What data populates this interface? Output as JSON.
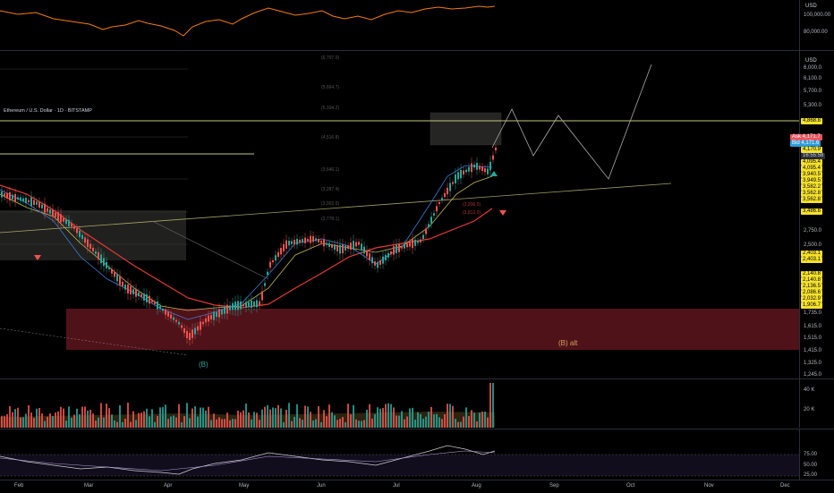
{
  "compare": {
    "currency": "USD",
    "ticks": [
      "100,000.00",
      "80,000.00"
    ]
  },
  "main": {
    "symbol": "Ethereum / U.S. Dollar · 1D · BITSTAMP",
    "currency": "USD",
    "axis_ticks": [
      "6,000.0",
      "6,100.0",
      "5,700.0",
      "5,300.0",
      "2,750.0",
      "2,500.0",
      "1,735.0",
      "1,615.0",
      "1,515.0",
      "1,415.0",
      "1,325.0",
      "1,245.0"
    ],
    "price_tags": [
      {
        "text": "4,868.8",
        "color": "yellow"
      },
      {
        "text": "Ask 4,171.7",
        "color": "red"
      },
      {
        "text": "Bid 4,171.6",
        "color": "blue"
      },
      {
        "text": "4,170.9",
        "color": "yellow"
      },
      {
        "text": "16:55:58",
        "color": "dark"
      },
      {
        "text": "4,095.4",
        "color": "yellow"
      },
      {
        "text": "4,095.4",
        "color": "yellow"
      },
      {
        "text": "3,940.5",
        "color": "yellow"
      },
      {
        "text": "3,949.5",
        "color": "yellow"
      },
      {
        "text": "3,582.2",
        "color": "yellow"
      },
      {
        "text": "3,562.8",
        "color": "yellow"
      },
      {
        "text": "3,562.8",
        "color": "yellow"
      },
      {
        "text": "3,486.8",
        "color": "yellow"
      },
      {
        "text": "2,403.1",
        "color": "yellow"
      },
      {
        "text": "2,403.1",
        "color": "yellow"
      },
      {
        "text": "2,140.8",
        "color": "yellow"
      },
      {
        "text": "2,140.8",
        "color": "yellow"
      },
      {
        "text": "2,136.5",
        "color": "yellow"
      },
      {
        "text": "2,086.6",
        "color": "yellow"
      },
      {
        "text": "2,032.9",
        "color": "yellow"
      },
      {
        "text": "1,906.7",
        "color": "yellow"
      }
    ],
    "fib_levels": [
      "(6,707.0)",
      "(5,664.7)",
      "(5,104.2)",
      "(4,516.8)",
      "(3,646.1)",
      "(3,287.4)",
      "(3,002.0)",
      "(2,778.1)",
      "(3,206.0)",
      "(3,813.0)"
    ],
    "wave_labels": {
      "b": "(B)",
      "b_alt": "(B) alt"
    }
  },
  "volume": {
    "ticks": [
      "40 K",
      "20 K"
    ]
  },
  "rsi": {
    "ticks": [
      "75.00",
      "50.00",
      "25.00"
    ]
  },
  "time_axis": [
    "Feb",
    "Mar",
    "Apr",
    "May",
    "Jun",
    "Jul",
    "Aug",
    "Sep",
    "Oct",
    "Nov",
    "Dec"
  ],
  "colors": {
    "background": "#000000",
    "up": "#26a69a",
    "down": "#ef5350",
    "ma_red": "#e53935",
    "compare_line": "#f57c00",
    "level_line": "#c8c878",
    "zone": "#6b1822"
  }
}
